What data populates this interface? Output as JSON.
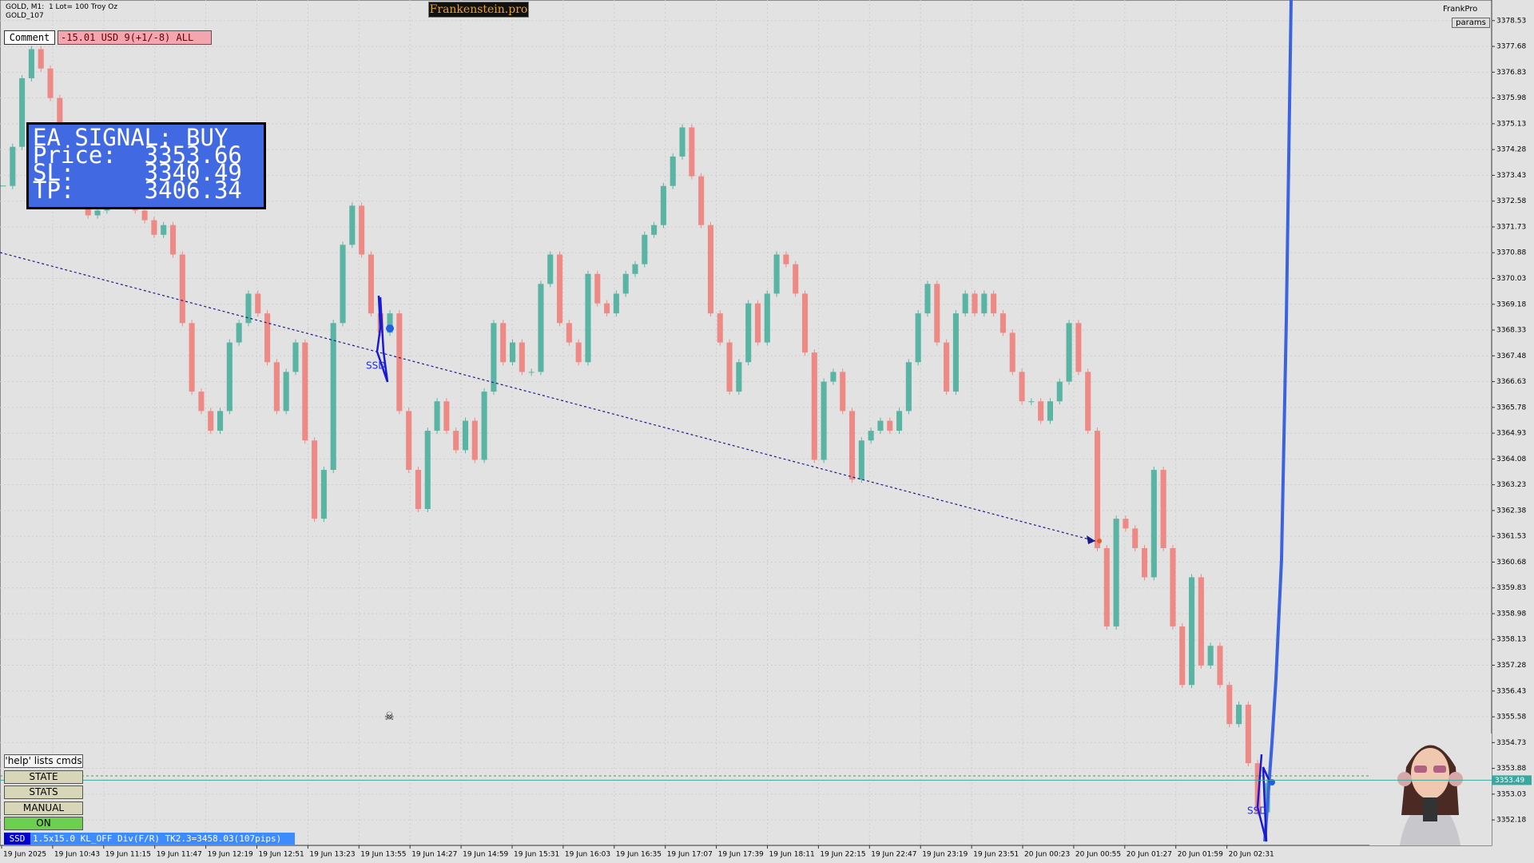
{
  "header": {
    "symbol": "GOLD, M1:  1 Lot= 100 Troy Oz",
    "account": "GOLD_107",
    "brand": "Frankenstein.pro",
    "user": "FrankPro",
    "params": "params"
  },
  "comment": {
    "label": "Comment",
    "text": "-15.01 USD 9(+1/-8) ALL"
  },
  "signal": {
    "lines": [
      "EA SIGNAL: BUY",
      "Price:  3353.66",
      "SL:     3340.49",
      "TP:     3406.34"
    ]
  },
  "buttons": [
    "'help' lists cmds",
    "STATE",
    "STATS",
    "MANUAL",
    "ON"
  ],
  "status": {
    "tag": "SSD",
    "text": "1.5x15.0 KL_OFF Div(F/R) TK2.3=3458.03(107pips)"
  },
  "markers": {
    "ssd": "SSD",
    "skull": "☠"
  },
  "chart_data": {
    "type": "candlestick",
    "up_color": "#5ab4a4",
    "down_color": "#ee8a86",
    "x_labels": [
      "19 Jun 2025",
      "19 Jun 10:43",
      "19 Jun 11:15",
      "19 Jun 11:47",
      "19 Jun 12:19",
      "19 Jun 12:51",
      "19 Jun 13:23",
      "19 Jun 13:55",
      "19 Jun 14:27",
      "19 Jun 14:59",
      "19 Jun 15:31",
      "19 Jun 16:03",
      "19 Jun 16:35",
      "19 Jun 17:07",
      "19 Jun 17:39",
      "19 Jun 18:11",
      "19 Jun 22:15",
      "19 Jun 22:47",
      "19 Jun 23:19",
      "19 Jun 23:51",
      "20 Jun 00:23",
      "20 Jun 00:55",
      "20 Jun 01:27",
      "20 Jun 01:59",
      "20 Jun 02:31"
    ],
    "closes": [
      3373.08,
      3374.37,
      3376.63,
      3377.59,
      3376.95,
      3375.98,
      3374.69,
      3373.72,
      3372.76,
      3372.11,
      3372.27,
      3372.76,
      3373.24,
      3372.76,
      3372.27,
      3371.95,
      3371.47,
      3371.79,
      3370.82,
      3368.56,
      3366.3,
      3365.66,
      3365.01,
      3365.66,
      3367.92,
      3368.56,
      3369.53,
      3368.88,
      3367.27,
      3365.66,
      3366.95,
      3367.92,
      3364.69,
      3362.11,
      3363.72,
      3368.56,
      3371.14,
      3372.43,
      3370.82,
      3368.88,
      3368.24,
      3368.88,
      3365.66,
      3363.72,
      3362.43,
      3365.01,
      3365.98,
      3365.01,
      3364.37,
      3365.34,
      3364.05,
      3366.3,
      3368.56,
      3367.27,
      3367.92,
      3366.95,
      3366.95,
      3369.85,
      3370.82,
      3368.56,
      3367.92,
      3367.27,
      3370.18,
      3369.21,
      3368.88,
      3369.53,
      3370.18,
      3370.5,
      3371.47,
      3371.79,
      3373.08,
      3374.05,
      3375.01,
      3373.4,
      3371.79,
      3368.88,
      3367.92,
      3366.3,
      3367.27,
      3369.21,
      3367.92,
      3369.53,
      3370.82,
      3370.5,
      3369.53,
      3367.59,
      3364.05,
      3366.63,
      3366.95,
      3365.66,
      3363.4,
      3364.69,
      3365.01,
      3365.34,
      3365.01,
      3365.66,
      3367.27,
      3368.88,
      3369.85,
      3367.92,
      3366.3,
      3368.88,
      3369.53,
      3368.88,
      3369.53,
      3368.88,
      3368.24,
      3366.95,
      3365.98,
      3365.98,
      3365.34,
      3365.98,
      3366.63,
      3368.56,
      3366.95,
      3365.01,
      3361.14,
      3358.56,
      3362.11,
      3361.79,
      3361.14,
      3360.18,
      3363.72,
      3361.14,
      3358.56,
      3356.63,
      3360.18,
      3357.27,
      3357.92,
      3356.63,
      3355.34,
      3355.98,
      3354.05,
      3352.43,
      3353.4
    ],
    "current_price": 3353.49,
    "current_color": "#3aa8a0",
    "ylim": [
      3351.34,
      3379.21
    ],
    "yticks": [
      3352.18,
      3353.03,
      3353.88,
      3354.73,
      3355.58,
      3356.43,
      3357.28,
      3358.13,
      3358.98,
      3359.83,
      3360.68,
      3361.53,
      3362.38,
      3363.23,
      3364.08,
      3364.93,
      3365.78,
      3366.63,
      3367.48,
      3368.33,
      3369.18,
      3370.03,
      3370.88,
      3371.73,
      3372.58,
      3373.43,
      3374.28,
      3375.13,
      3375.98,
      3376.83,
      3377.68,
      3378.53
    ],
    "grid": true
  }
}
